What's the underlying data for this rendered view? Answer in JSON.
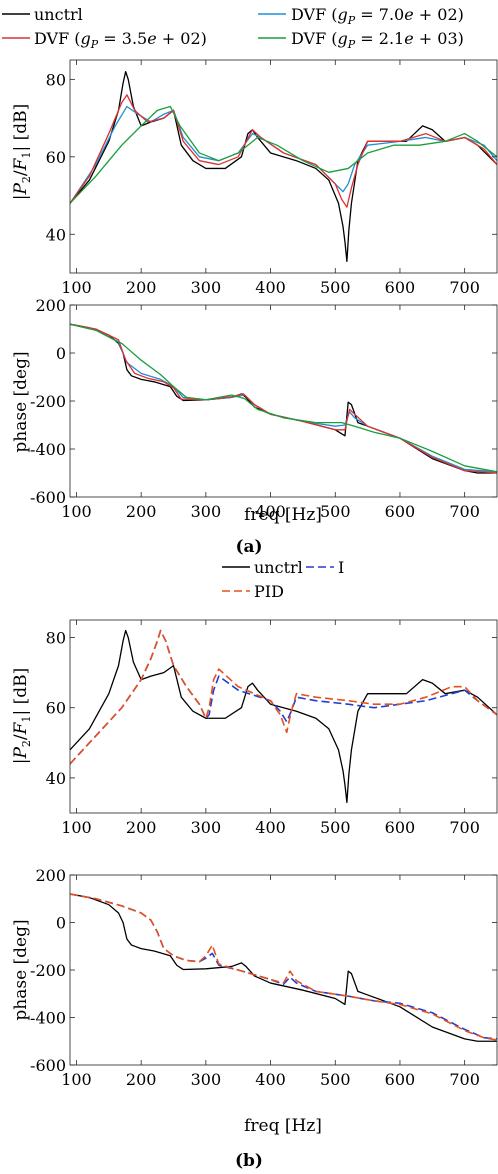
{
  "panel_labels": {
    "a": "(a)",
    "b": "(b)"
  },
  "chart_data": [
    {
      "type": "line",
      "panel": "a-magnitude",
      "xlabel": "",
      "ylabel": "|P_2/F_1| [dB]",
      "xlim": [
        90,
        750
      ],
      "ylim": [
        30,
        85
      ],
      "xticks": [
        100,
        200,
        300,
        400,
        500,
        600,
        700
      ],
      "yticks": [
        40,
        60,
        80
      ],
      "grid": false,
      "legend": [
        "unctrl",
        "DVF (g_P = 7.0e+02)",
        "DVF (g_P = 3.5e+02)",
        "DVF (g_P = 2.1e+03)"
      ],
      "series": [
        {
          "name": "unctrl",
          "color": "#000000",
          "dash": "",
          "x": [
            90,
            120,
            150,
            165,
            172,
            176,
            180,
            188,
            200,
            215,
            235,
            250,
            262,
            280,
            300,
            330,
            355,
            365,
            372,
            380,
            400,
            440,
            470,
            490,
            505,
            512,
            515,
            518,
            521,
            525,
            535,
            550,
            580,
            610,
            635,
            650,
            670,
            700,
            720,
            750
          ],
          "y": [
            48,
            54,
            64,
            72,
            79,
            82,
            80,
            73,
            68,
            69,
            70,
            72,
            63,
            59,
            57,
            57,
            60,
            66,
            67,
            65,
            61,
            59,
            57,
            54,
            48,
            42,
            38,
            33,
            41,
            48,
            59,
            64,
            64,
            64,
            68,
            67,
            64,
            65,
            63,
            58
          ]
        },
        {
          "name": "DVF (g_P = 7.0e+02)",
          "color": "#1f8fd6",
          "dash": "",
          "x": [
            90,
            130,
            160,
            178,
            195,
            215,
            235,
            250,
            265,
            290,
            320,
            350,
            372,
            385,
            420,
            470,
            500,
            512,
            520,
            530,
            550,
            600,
            640,
            670,
            700,
            730,
            750
          ],
          "y": [
            48,
            58,
            68,
            73,
            71,
            69,
            71,
            72,
            65,
            60,
            59,
            61,
            66,
            65,
            61,
            58,
            53,
            51,
            53,
            58,
            63,
            64,
            65,
            64,
            65,
            63,
            59
          ]
        },
        {
          "name": "DVF (g_P = 3.5e+02)",
          "color": "#e03030",
          "dash": "",
          "x": [
            90,
            120,
            150,
            170,
            178,
            190,
            210,
            235,
            250,
            265,
            290,
            320,
            350,
            372,
            385,
            420,
            470,
            500,
            510,
            518,
            525,
            535,
            550,
            600,
            640,
            670,
            700,
            730,
            750
          ],
          "y": [
            48,
            55,
            66,
            74,
            76,
            72,
            69,
            70,
            72,
            64,
            59,
            58,
            60,
            67,
            65,
            61,
            58,
            53,
            49,
            47,
            52,
            58,
            64,
            64,
            66,
            64,
            65,
            62,
            58
          ]
        },
        {
          "name": "DVF (g_P = 2.1e+03)",
          "color": "#1a9e3a",
          "dash": "",
          "x": [
            90,
            130,
            170,
            200,
            225,
            245,
            260,
            290,
            320,
            350,
            380,
            410,
            450,
            490,
            520,
            550,
            590,
            630,
            670,
            700,
            720,
            750
          ],
          "y": [
            48,
            55,
            63,
            68,
            72,
            73,
            68,
            61,
            59,
            61,
            65,
            63,
            59,
            56,
            57,
            61,
            63,
            63,
            64,
            66,
            64,
            60
          ]
        }
      ]
    },
    {
      "type": "line",
      "panel": "a-phase",
      "xlabel": "freq [Hz]",
      "ylabel": "phase [deg]",
      "xlim": [
        90,
        750
      ],
      "ylim": [
        -600,
        200
      ],
      "xticks": [
        100,
        200,
        300,
        400,
        500,
        600,
        700
      ],
      "yticks": [
        -600,
        -400,
        -200,
        0,
        200
      ],
      "grid": false,
      "series": [
        {
          "name": "unctrl",
          "color": "#000000",
          "dash": "",
          "x": [
            90,
            120,
            150,
            165,
            172,
            178,
            185,
            200,
            220,
            245,
            255,
            265,
            300,
            340,
            355,
            362,
            375,
            400,
            450,
            500,
            515,
            520,
            525,
            535,
            550,
            600,
            650,
            700,
            720,
            750
          ],
          "y": [
            120,
            105,
            75,
            40,
            0,
            -70,
            -95,
            -110,
            -120,
            -140,
            -180,
            -198,
            -195,
            -185,
            -170,
            -185,
            -225,
            -255,
            -285,
            -320,
            -345,
            -205,
            -215,
            -290,
            -305,
            -355,
            -440,
            -490,
            -500,
            -500
          ]
        },
        {
          "name": "DVF (g_P = 7.0e+02)",
          "color": "#1f8fd6",
          "dash": "",
          "x": [
            90,
            130,
            165,
            178,
            200,
            230,
            250,
            265,
            300,
            340,
            360,
            375,
            400,
            450,
            500,
            515,
            522,
            530,
            550,
            600,
            650,
            700,
            750
          ],
          "y": [
            120,
            95,
            45,
            -40,
            -85,
            -110,
            -140,
            -185,
            -195,
            -185,
            -175,
            -215,
            -255,
            -285,
            -305,
            -300,
            -245,
            -270,
            -305,
            -355,
            -430,
            -485,
            -495
          ]
        },
        {
          "name": "DVF (g_P = 3.5e+02)",
          "color": "#e03030",
          "dash": "",
          "x": [
            90,
            130,
            165,
            176,
            190,
            210,
            235,
            250,
            262,
            300,
            340,
            358,
            375,
            400,
            450,
            500,
            515,
            522,
            530,
            550,
            600,
            650,
            700,
            750
          ],
          "y": [
            120,
            100,
            55,
            -30,
            -85,
            -105,
            -120,
            -145,
            -192,
            -195,
            -182,
            -170,
            -215,
            -255,
            -285,
            -320,
            -320,
            -235,
            -255,
            -305,
            -355,
            -435,
            -490,
            -500
          ]
        },
        {
          "name": "DVF (g_P = 2.1e+03)",
          "color": "#1a9e3a",
          "dash": "",
          "x": [
            90,
            130,
            170,
            200,
            230,
            250,
            270,
            300,
            340,
            360,
            380,
            420,
            470,
            510,
            530,
            560,
            600,
            650,
            700,
            750
          ],
          "y": [
            120,
            95,
            40,
            -30,
            -90,
            -140,
            -185,
            -195,
            -175,
            -190,
            -235,
            -270,
            -290,
            -290,
            -305,
            -330,
            -355,
            -410,
            -470,
            -495
          ]
        }
      ]
    },
    {
      "type": "line",
      "panel": "b-magnitude",
      "xlabel": "",
      "ylabel": "|P_2/F_1| [dB]",
      "xlim": [
        90,
        750
      ],
      "ylim": [
        30,
        85
      ],
      "xticks": [
        100,
        200,
        300,
        400,
        500,
        600,
        700
      ],
      "yticks": [
        40,
        60,
        80
      ],
      "grid": false,
      "legend": [
        "unctrl",
        "I",
        "PID"
      ],
      "series": [
        {
          "name": "unctrl",
          "color": "#000000",
          "dash": "",
          "x": [
            90,
            120,
            150,
            165,
            172,
            176,
            180,
            188,
            200,
            215,
            235,
            250,
            262,
            280,
            300,
            330,
            355,
            365,
            372,
            380,
            400,
            440,
            470,
            490,
            505,
            512,
            515,
            518,
            521,
            525,
            535,
            550,
            580,
            610,
            635,
            650,
            670,
            700,
            720,
            750
          ],
          "y": [
            48,
            54,
            64,
            72,
            79,
            82,
            80,
            73,
            68,
            69,
            70,
            72,
            63,
            59,
            57,
            57,
            60,
            66,
            67,
            65,
            61,
            59,
            57,
            54,
            48,
            42,
            38,
            33,
            41,
            48,
            59,
            64,
            64,
            64,
            68,
            67,
            64,
            65,
            63,
            58
          ]
        },
        {
          "name": "I",
          "color": "#1f3fd6",
          "dash": "8,4",
          "x": [
            90,
            130,
            170,
            200,
            215,
            225,
            230,
            238,
            250,
            270,
            290,
            300,
            305,
            312,
            320,
            350,
            400,
            415,
            425,
            432,
            440,
            470,
            520,
            560,
            600,
            640,
            680,
            700,
            720,
            750
          ],
          "y": [
            44,
            52,
            60,
            68,
            74,
            79,
            82,
            79,
            72,
            66,
            61,
            57,
            58,
            65,
            69,
            65,
            62,
            59,
            56,
            59,
            63,
            62,
            61,
            60,
            61,
            62,
            64,
            65,
            62,
            58
          ]
        },
        {
          "name": "PID",
          "color": "#e8501a",
          "dash": "8,4",
          "x": [
            90,
            130,
            170,
            200,
            215,
            225,
            230,
            238,
            250,
            270,
            290,
            300,
            305,
            312,
            320,
            350,
            400,
            415,
            425,
            432,
            440,
            470,
            520,
            560,
            600,
            640,
            680,
            700,
            720,
            750
          ],
          "y": [
            44,
            52,
            60,
            68,
            74,
            79,
            82,
            79,
            72,
            66,
            61,
            57,
            60,
            68,
            71,
            66,
            62,
            58,
            53,
            59,
            64,
            63,
            62,
            61,
            61,
            63,
            66,
            66,
            62,
            58
          ]
        }
      ]
    },
    {
      "type": "line",
      "panel": "b-phase",
      "xlabel": "freq [Hz]",
      "ylabel": "phase [deg]",
      "xlim": [
        90,
        750
      ],
      "ylim": [
        -600,
        200
      ],
      "xticks": [
        100,
        200,
        300,
        400,
        500,
        600,
        700
      ],
      "yticks": [
        -600,
        -400,
        -200,
        0,
        200
      ],
      "grid": false,
      "series": [
        {
          "name": "unctrl",
          "color": "#000000",
          "dash": "",
          "x": [
            90,
            120,
            150,
            165,
            172,
            178,
            185,
            200,
            220,
            245,
            255,
            265,
            300,
            340,
            355,
            362,
            375,
            400,
            450,
            500,
            515,
            520,
            525,
            535,
            550,
            600,
            650,
            700,
            720,
            750
          ],
          "y": [
            120,
            105,
            75,
            40,
            0,
            -70,
            -95,
            -110,
            -120,
            -140,
            -180,
            -198,
            -195,
            -185,
            -170,
            -185,
            -225,
            -255,
            -285,
            -320,
            -345,
            -205,
            -215,
            -290,
            -305,
            -355,
            -440,
            -490,
            -500,
            -500
          ]
        },
        {
          "name": "I",
          "color": "#1f3fd6",
          "dash": "8,4",
          "x": [
            90,
            130,
            170,
            200,
            215,
            225,
            235,
            250,
            270,
            290,
            300,
            310,
            320,
            350,
            400,
            420,
            430,
            440,
            470,
            520,
            560,
            600,
            650,
            700,
            730,
            750
          ],
          "y": [
            120,
            100,
            70,
            40,
            10,
            -40,
            -110,
            -140,
            -160,
            -165,
            -150,
            -130,
            -180,
            -200,
            -240,
            -260,
            -230,
            -255,
            -290,
            -310,
            -330,
            -340,
            -380,
            -450,
            -485,
            -490
          ]
        },
        {
          "name": "PID",
          "color": "#e8501a",
          "dash": "8,4",
          "x": [
            90,
            130,
            170,
            200,
            215,
            225,
            235,
            250,
            270,
            290,
            300,
            310,
            320,
            350,
            400,
            420,
            430,
            440,
            470,
            520,
            560,
            600,
            650,
            700,
            730,
            750
          ],
          "y": [
            120,
            100,
            70,
            40,
            10,
            -40,
            -110,
            -140,
            -160,
            -165,
            -140,
            -95,
            -175,
            -200,
            -240,
            -255,
            -205,
            -245,
            -290,
            -310,
            -330,
            -345,
            -385,
            -455,
            -485,
            -495
          ]
        }
      ]
    }
  ]
}
